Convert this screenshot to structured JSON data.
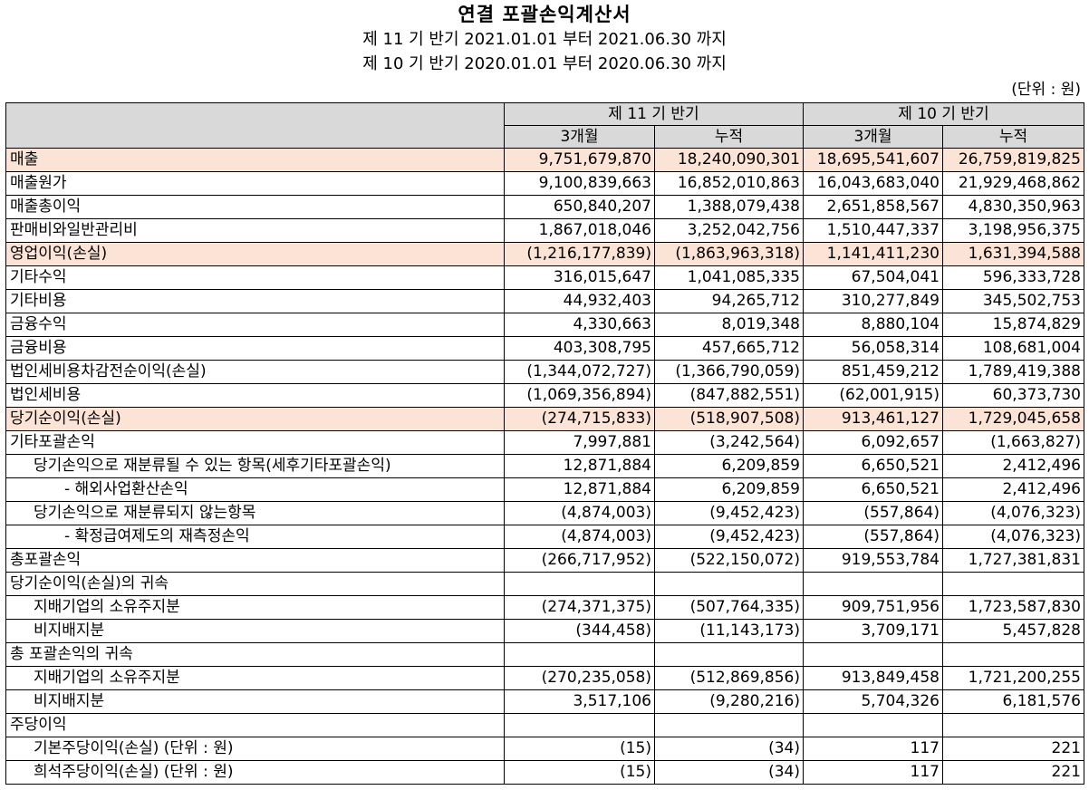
{
  "title": "연결 포괄손익계산서",
  "periods": [
    "제 11 기 반기 2021.01.01 부터 2021.06.30 까지",
    "제 10 기 반기 2020.01.01 부터 2020.06.30 까지"
  ],
  "unit": "(단위 : 원)",
  "header": {
    "group_current": "제 11 기 반기",
    "group_prior": "제 10 기 반기",
    "col_3m_current": "3개월",
    "col_cum_current": "누적",
    "col_3m_prior": "3개월",
    "col_cum_prior": "누적"
  },
  "highlight_color": "#fbe4d5",
  "header_color": "#d9d9d9",
  "rows": [
    {
      "label": "매출",
      "indent": 0,
      "highlight": true,
      "values": [
        "9,751,679,870",
        "18,240,090,301",
        "18,695,541,607",
        "26,759,819,825"
      ]
    },
    {
      "label": "매출원가",
      "indent": 0,
      "highlight": false,
      "values": [
        "9,100,839,663",
        "16,852,010,863",
        "16,043,683,040",
        "21,929,468,862"
      ]
    },
    {
      "label": "매출총이익",
      "indent": 0,
      "highlight": false,
      "values": [
        "650,840,207",
        "1,388,079,438",
        "2,651,858,567",
        "4,830,350,963"
      ]
    },
    {
      "label": "판매비와일반관리비",
      "indent": 0,
      "highlight": false,
      "values": [
        "1,867,018,046",
        "3,252,042,756",
        "1,510,447,337",
        "3,198,956,375"
      ]
    },
    {
      "label": "영업이익(손실)",
      "indent": 0,
      "highlight": true,
      "values": [
        "(1,216,177,839)",
        "(1,863,963,318)",
        "1,141,411,230",
        "1,631,394,588"
      ]
    },
    {
      "label": "기타수익",
      "indent": 0,
      "highlight": false,
      "values": [
        "316,015,647",
        "1,041,085,335",
        "67,504,041",
        "596,333,728"
      ]
    },
    {
      "label": "기타비용",
      "indent": 0,
      "highlight": false,
      "values": [
        "44,932,403",
        "94,265,712",
        "310,277,849",
        "345,502,753"
      ]
    },
    {
      "label": "금융수익",
      "indent": 0,
      "highlight": false,
      "values": [
        "4,330,663",
        "8,019,348",
        "8,880,104",
        "15,874,829"
      ]
    },
    {
      "label": "금융비용",
      "indent": 0,
      "highlight": false,
      "values": [
        "403,308,795",
        "457,665,712",
        "56,058,314",
        "108,681,004"
      ]
    },
    {
      "label": "법인세비용차감전순이익(손실)",
      "indent": 0,
      "highlight": false,
      "values": [
        "(1,344,072,727)",
        "(1,366,790,059)",
        "851,459,212",
        "1,789,419,388"
      ]
    },
    {
      "label": "법인세비용",
      "indent": 0,
      "highlight": false,
      "values": [
        "(1,069,356,894)",
        "(847,882,551)",
        "(62,001,915)",
        "60,373,730"
      ]
    },
    {
      "label": "당기순이익(손실)",
      "indent": 0,
      "highlight": true,
      "values": [
        "(274,715,833)",
        "(518,907,508)",
        "913,461,127",
        "1,729,045,658"
      ]
    },
    {
      "label": "기타포괄손익",
      "indent": 0,
      "highlight": false,
      "values": [
        "7,997,881",
        "(3,242,564)",
        "6,092,657",
        "(1,663,827)"
      ]
    },
    {
      "label": "당기손익으로 재분류될 수 있는 항목(세후기타포괄손익)",
      "indent": 1,
      "highlight": false,
      "values": [
        "12,871,884",
        "6,209,859",
        "6,650,521",
        "2,412,496"
      ]
    },
    {
      "label": "- 해외사업환산손익",
      "indent": 2,
      "highlight": false,
      "values": [
        "12,871,884",
        "6,209,859",
        "6,650,521",
        "2,412,496"
      ]
    },
    {
      "label": "당기손익으로 재분류되지 않는항목",
      "indent": 1,
      "highlight": false,
      "values": [
        "(4,874,003)",
        "(9,452,423)",
        "(557,864)",
        "(4,076,323)"
      ]
    },
    {
      "label": "- 확정급여제도의 재측정손익",
      "indent": 2,
      "highlight": false,
      "values": [
        "(4,874,003)",
        "(9,452,423)",
        "(557,864)",
        "(4,076,323)"
      ]
    },
    {
      "label": "총포괄손익",
      "indent": 0,
      "highlight": false,
      "values": [
        "(266,717,952)",
        "(522,150,072)",
        "919,553,784",
        "1,727,381,831"
      ]
    },
    {
      "label": "당기순이익(손실)의 귀속",
      "indent": 0,
      "highlight": false,
      "values": [
        "",
        "",
        "",
        ""
      ]
    },
    {
      "label": "지배기업의 소유주지분",
      "indent": 1,
      "highlight": false,
      "values": [
        "(274,371,375)",
        "(507,764,335)",
        "909,751,956",
        "1,723,587,830"
      ]
    },
    {
      "label": "비지배지분",
      "indent": 1,
      "highlight": false,
      "values": [
        "(344,458)",
        "(11,143,173)",
        "3,709,171",
        "5,457,828"
      ]
    },
    {
      "label": "총 포괄손익의 귀속",
      "indent": 0,
      "highlight": false,
      "values": [
        "",
        "",
        "",
        ""
      ]
    },
    {
      "label": "지배기업의 소유주지분",
      "indent": 1,
      "highlight": false,
      "values": [
        "(270,235,058)",
        "(512,869,856)",
        "913,849,458",
        "1,721,200,255"
      ]
    },
    {
      "label": "비지배지분",
      "indent": 1,
      "highlight": false,
      "values": [
        "3,517,106",
        "(9,280,216)",
        "5,704,326",
        "6,181,576"
      ]
    },
    {
      "label": "주당이익",
      "indent": 0,
      "highlight": false,
      "values": [
        "",
        "",
        "",
        ""
      ]
    },
    {
      "label": "기본주당이익(손실) (단위 : 원)",
      "indent": 1,
      "highlight": false,
      "values": [
        "(15)",
        "(34)",
        "117",
        "221"
      ]
    },
    {
      "label": "희석주당이익(손실) (단위 : 원)",
      "indent": 1,
      "highlight": false,
      "values": [
        "(15)",
        "(34)",
        "117",
        "221"
      ]
    }
  ]
}
